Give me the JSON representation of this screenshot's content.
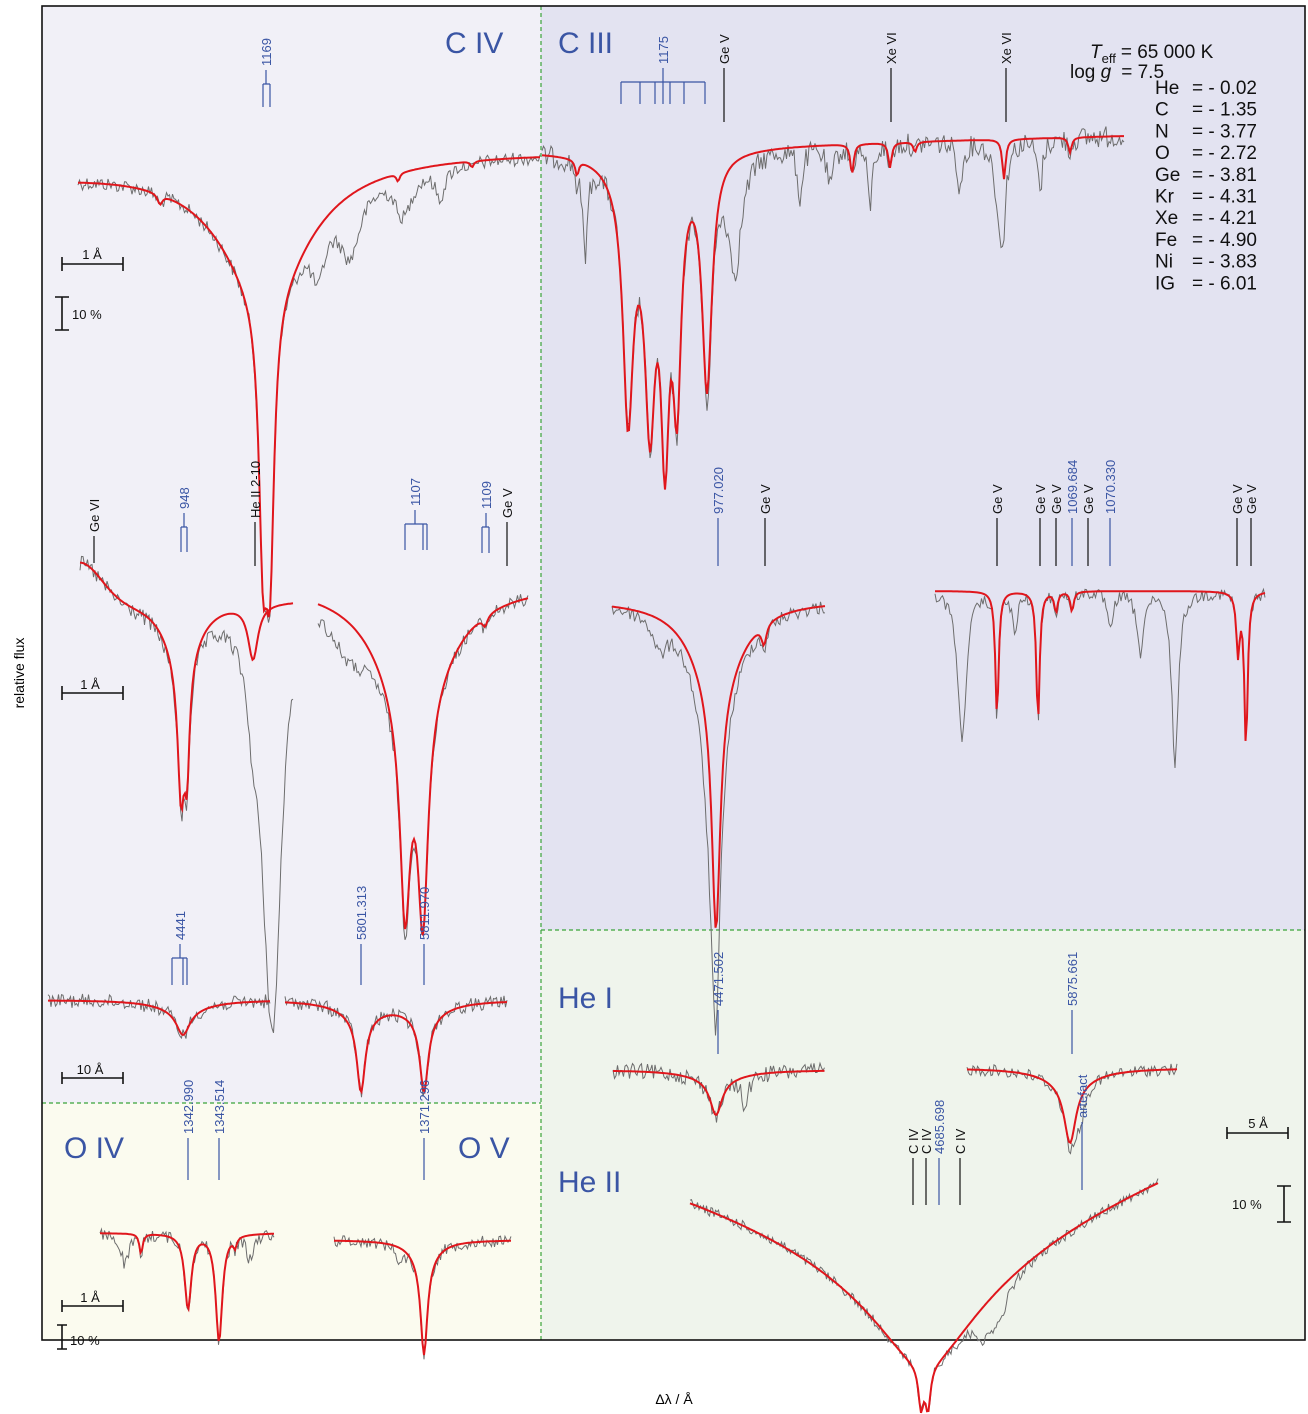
{
  "axes": {
    "xlabel": "Δλ / Å",
    "ylabel": "relative flux"
  },
  "params": {
    "teff_label": "T",
    "teff_sub": "eff",
    "teff_value": "= 65 000 K",
    "logg_label": "log ",
    "logg_g": "g",
    "logg_value": "= 7.5"
  },
  "abundances": [
    {
      "el": "He",
      "val": "= - 0.02"
    },
    {
      "el": "C",
      "val": "= - 1.35"
    },
    {
      "el": "N",
      "val": "= - 3.77"
    },
    {
      "el": "O",
      "val": "= - 2.72"
    },
    {
      "el": "Ge",
      "val": "= - 3.81"
    },
    {
      "el": "Kr",
      "val": "= - 4.31"
    },
    {
      "el": "Xe",
      "val": "= - 4.21"
    },
    {
      "el": "Fe",
      "val": "= - 4.90"
    },
    {
      "el": "Ni",
      "val": "= - 3.83"
    },
    {
      "el": "IG",
      "val": "= - 6.01"
    }
  ],
  "panels": {
    "civ": "C IV",
    "ciii": "C III",
    "hei": "He I",
    "heii": "He II",
    "oiv": "O IV",
    "ov": "O V"
  },
  "scalebars": {
    "civ_wl": "1 Å",
    "civ_flux": "10 %",
    "mid_wl": "1 Å",
    "opt_wl": "10 Å",
    "o_wl": "1 Å",
    "o_flux": "10 %",
    "he_wl": "5 Å",
    "he_flux": "10 %"
  },
  "colors": {
    "model": "#e0161c",
    "observation": "#6d6d6d",
    "ion_label": "#3a55a4",
    "bg_carbon": "#f1f0f7",
    "bg_ciii": "#e3e3f1",
    "bg_helium": "#eff4ec",
    "bg_oxygen": "#fbfbef",
    "divider": "#3aa43a"
  },
  "chart_data": [
    {
      "type": "line",
      "panel": "C IV",
      "series": [
        {
          "name": "observation"
        },
        {
          "name": "model"
        }
      ],
      "line_ids": [
        {
          "label": "1169",
          "color": "blue"
        }
      ]
    },
    {
      "type": "line",
      "panel": "C III",
      "series": [
        {
          "name": "observation"
        },
        {
          "name": "model"
        }
      ],
      "line_ids": [
        {
          "label": "1175",
          "color": "blue"
        },
        {
          "label": "Ge V",
          "color": "black"
        },
        {
          "label": "Xe VI",
          "color": "black"
        },
        {
          "label": "Xe VI",
          "color": "black"
        }
      ]
    },
    {
      "type": "line",
      "panel": "C IV 948 / He II",
      "series": [
        {
          "name": "observation"
        },
        {
          "name": "model"
        }
      ],
      "line_ids": [
        {
          "label": "Ge VI",
          "color": "black"
        },
        {
          "label": "948",
          "color": "blue"
        },
        {
          "label": "He II 2-10",
          "color": "black"
        }
      ]
    },
    {
      "type": "line",
      "panel": "C IV 1107",
      "series": [
        {
          "name": "observation"
        },
        {
          "name": "model"
        }
      ],
      "line_ids": [
        {
          "label": "1107",
          "color": "blue"
        },
        {
          "label": "1109",
          "color": "blue"
        },
        {
          "label": "Ge V",
          "color": "black"
        }
      ]
    },
    {
      "type": "line",
      "panel": "C III 977",
      "series": [
        {
          "name": "observation"
        },
        {
          "name": "model"
        }
      ],
      "line_ids": [
        {
          "label": "977.020",
          "color": "blue"
        },
        {
          "label": "Ge V",
          "color": "black"
        }
      ]
    },
    {
      "type": "line",
      "panel": "C III 1070",
      "series": [
        {
          "name": "observation"
        },
        {
          "name": "model"
        }
      ],
      "line_ids": [
        {
          "label": "Ge V",
          "color": "black"
        },
        {
          "label": "Ge V",
          "color": "black"
        },
        {
          "label": "Ge V",
          "color": "black"
        },
        {
          "label": "1069.684",
          "color": "blue"
        },
        {
          "label": "Ge V",
          "color": "black"
        },
        {
          "label": "1070.330",
          "color": "blue"
        },
        {
          "label": "Ge V",
          "color": "black"
        },
        {
          "label": "Ge V",
          "color": "black"
        }
      ]
    },
    {
      "type": "line",
      "panel": "C IV optical",
      "series": [
        {
          "name": "observation"
        },
        {
          "name": "model"
        }
      ],
      "line_ids": [
        {
          "label": "4441",
          "color": "blue"
        },
        {
          "label": "5801.313",
          "color": "blue"
        },
        {
          "label": "5811.970",
          "color": "blue"
        }
      ]
    },
    {
      "type": "line",
      "panel": "He I",
      "series": [
        {
          "name": "observation"
        },
        {
          "name": "model"
        }
      ],
      "line_ids": [
        {
          "label": "4471.502",
          "color": "blue"
        },
        {
          "label": "5875.661",
          "color": "blue"
        },
        {
          "label": "artefact",
          "color": "blue"
        }
      ]
    },
    {
      "type": "line",
      "panel": "He II",
      "series": [
        {
          "name": "observation"
        },
        {
          "name": "model"
        }
      ],
      "line_ids": [
        {
          "label": "C IV",
          "color": "black"
        },
        {
          "label": "C IV",
          "color": "black"
        },
        {
          "label": "4685.698",
          "color": "blue"
        },
        {
          "label": "C IV",
          "color": "black"
        }
      ]
    },
    {
      "type": "line",
      "panel": "O IV / O V",
      "series": [
        {
          "name": "observation"
        },
        {
          "name": "model"
        }
      ],
      "line_ids": [
        {
          "label": "1342.990",
          "color": "blue"
        },
        {
          "label": "1343.514",
          "color": "blue"
        },
        {
          "label": "1371.296",
          "color": "blue"
        }
      ]
    }
  ]
}
